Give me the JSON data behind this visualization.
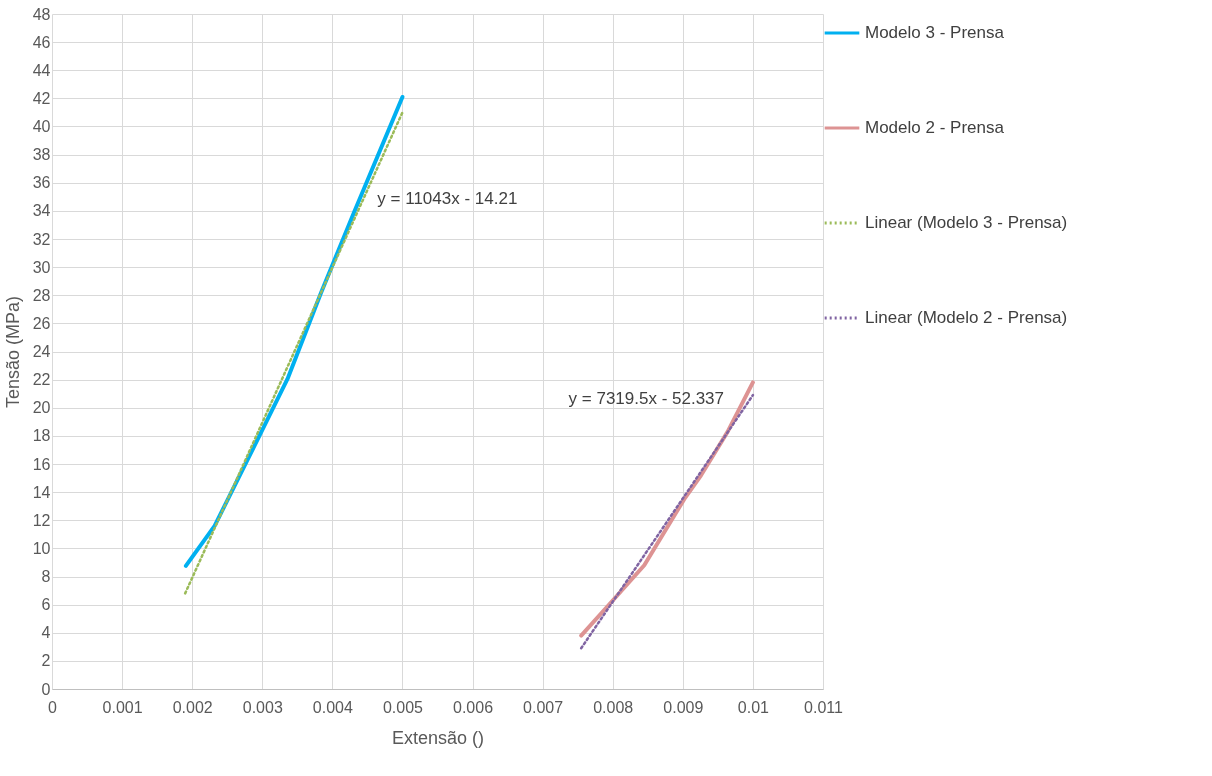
{
  "chart_data": {
    "type": "line",
    "xlabel": "Extensão ()",
    "ylabel": "Tensão (MPa)",
    "xlim": [
      0,
      0.011
    ],
    "xticks": [
      0,
      0.001,
      0.002,
      0.003,
      0.004,
      0.005,
      0.006,
      0.007,
      0.008,
      0.009,
      0.01,
      0.011
    ],
    "ylim": [
      0,
      48
    ],
    "yticks": [
      0,
      2,
      4,
      6,
      8,
      10,
      12,
      14,
      16,
      18,
      20,
      22,
      24,
      26,
      28,
      30,
      32,
      34,
      36,
      38,
      40,
      42,
      44,
      46,
      48
    ],
    "grid": true,
    "legend": "right",
    "series": [
      {
        "name": "Modelo 3 - Prensa",
        "color": "#00b0f0",
        "line_style": "solid",
        "x": [
          0.00191,
          0.00232,
          0.00289,
          0.00336,
          0.00384,
          0.00431,
          0.005
        ],
        "values": [
          8.75,
          11.6,
          17.3,
          22.05,
          28.2,
          33.9,
          42.1
        ]
      },
      {
        "name": "Modelo 2 - Prensa",
        "color": "#dd9393",
        "line_style": "solid",
        "x": [
          0.00755,
          0.00793,
          0.00845,
          0.00902,
          0.00926,
          0.00964,
          0.01
        ],
        "values": [
          3.8,
          5.9,
          8.8,
          13.5,
          15.2,
          18.3,
          21.8
        ]
      },
      {
        "name": "Linear (Modelo 3 - Prensa)",
        "color": "#9bbb59",
        "line_style": "dotted",
        "x": [
          0.0019,
          0.005
        ],
        "values": [
          6.8,
          41.0
        ]
      },
      {
        "name": "Linear (Modelo 2 - Prensa)",
        "color": "#8064a2",
        "line_style": "dotted",
        "x": [
          0.00755,
          0.01
        ],
        "values": [
          2.9,
          20.9
        ]
      }
    ],
    "annotations": [
      "y = 11043x - 14.21",
      "y = 7319.5x - 52.337"
    ]
  }
}
